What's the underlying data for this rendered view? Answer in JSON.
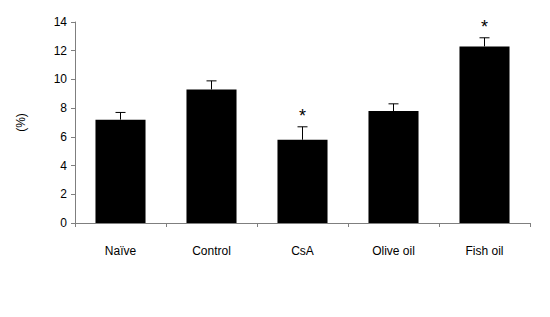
{
  "chart_data": {
    "type": "bar",
    "categories": [
      "Naïve",
      "Control",
      "CsA",
      "Olive oil",
      "Fish oil"
    ],
    "values": [
      7.2,
      9.3,
      5.8,
      7.8,
      12.3
    ],
    "errors": [
      0.5,
      0.6,
      0.9,
      0.5,
      0.6
    ],
    "color": "#000000",
    "y_label": "(%)",
    "ylim": [
      0,
      14
    ],
    "yticks": [
      0,
      2,
      4,
      6,
      8,
      10,
      12,
      14
    ],
    "grid": false,
    "annotations": [
      {
        "category": "CsA",
        "text": "*"
      },
      {
        "category": "Fish oil",
        "text": "*"
      }
    ]
  }
}
